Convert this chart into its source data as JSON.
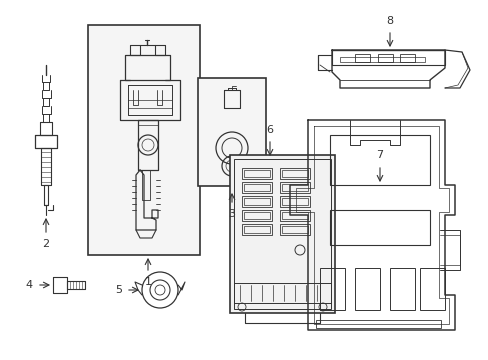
{
  "bg_color": "#ffffff",
  "line_color": "#333333",
  "fig_width": 4.89,
  "fig_height": 3.6,
  "dpi": 100
}
